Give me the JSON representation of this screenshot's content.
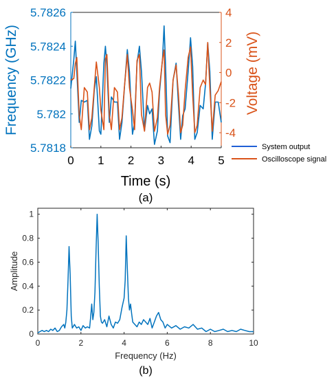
{
  "colors": {
    "system_output": "#0072BD",
    "oscilloscope": "#D95319",
    "legend_system": "#1f5fd6",
    "axis_gray": "#262626"
  },
  "chart_data": [
    {
      "type": "line",
      "caption": "(a)",
      "xlabel": "Time (s)",
      "ylabel_left": "Frequency (GHz)",
      "ylabel_right": "Voltage (mV)",
      "xlim": [
        0,
        5
      ],
      "ylim_left": [
        5.7818,
        5.7826
      ],
      "ylim_right": [
        -5,
        4
      ],
      "x_ticks": [
        0,
        1,
        2,
        3,
        4,
        5
      ],
      "y_left_ticks": [
        5.7818,
        5.782,
        5.7822,
        5.7824,
        5.7826
      ],
      "y_right_ticks": [
        -4,
        -2,
        0,
        2,
        4
      ],
      "y_left_tick_labels": [
        "5.7818",
        "5.782",
        "5.7822",
        "5.7824",
        "5.7826"
      ],
      "legend": [
        "System output",
        "Oscilloscope signal"
      ],
      "legend_position": "outside-right",
      "grid": false,
      "series": [
        {
          "name": "System output",
          "axis": "left",
          "x": [
            0.0,
            0.1,
            0.15,
            0.2,
            0.28,
            0.35,
            0.45,
            0.55,
            0.62,
            0.7,
            0.78,
            0.85,
            0.95,
            1.0,
            1.1,
            1.15,
            1.2,
            1.28,
            1.35,
            1.45,
            1.55,
            1.62,
            1.7,
            1.78,
            1.88,
            1.95,
            2.05,
            2.12,
            2.2,
            2.28,
            2.35,
            2.45,
            2.55,
            2.62,
            2.7,
            2.78,
            2.88,
            2.95,
            3.05,
            3.1,
            3.15,
            3.22,
            3.3,
            3.4,
            3.5,
            3.58,
            3.65,
            3.72,
            3.8,
            3.9,
            3.98,
            4.05,
            4.12,
            4.2,
            4.3,
            4.4,
            4.48,
            4.55,
            4.62,
            4.7,
            4.8,
            4.9,
            5.0
          ],
          "y": [
            5.78215,
            5.78232,
            5.78243,
            5.78225,
            5.78195,
            5.78208,
            5.78207,
            5.78208,
            5.78185,
            5.78193,
            5.78214,
            5.78222,
            5.7819,
            5.78188,
            5.7823,
            5.7824,
            5.78228,
            5.78195,
            5.7821,
            5.78207,
            5.78207,
            5.78185,
            5.78195,
            5.78215,
            5.78238,
            5.78225,
            5.78188,
            5.78195,
            5.7823,
            5.7824,
            5.78225,
            5.7819,
            5.78205,
            5.782,
            5.78203,
            5.78182,
            5.7819,
            5.78213,
            5.78233,
            5.78252,
            5.78228,
            5.78187,
            5.78183,
            5.7822,
            5.7823,
            5.78205,
            5.78185,
            5.78199,
            5.78203,
            5.78225,
            5.78245,
            5.78228,
            5.78185,
            5.78189,
            5.78205,
            5.78203,
            5.78218,
            5.78242,
            5.78225,
            5.78185,
            5.78207,
            5.78207,
            5.78195
          ]
        },
        {
          "name": "Oscilloscope signal",
          "axis": "right",
          "x": [
            0.0,
            0.1,
            0.15,
            0.2,
            0.28,
            0.35,
            0.45,
            0.55,
            0.62,
            0.7,
            0.78,
            0.85,
            0.95,
            1.0,
            1.1,
            1.15,
            1.2,
            1.28,
            1.35,
            1.45,
            1.55,
            1.62,
            1.7,
            1.78,
            1.88,
            1.95,
            2.05,
            2.12,
            2.2,
            2.28,
            2.35,
            2.45,
            2.55,
            2.62,
            2.7,
            2.78,
            2.88,
            2.95,
            3.05,
            3.1,
            3.15,
            3.22,
            3.3,
            3.4,
            3.5,
            3.58,
            3.65,
            3.72,
            3.8,
            3.9,
            3.98,
            4.05,
            4.12,
            4.2,
            4.3,
            4.4,
            4.48,
            4.55,
            4.62,
            4.7,
            4.8,
            4.9,
            5.0
          ],
          "y": [
            -0.5,
            -0.4,
            0.6,
            1.0,
            -2.8,
            -3.8,
            -1.0,
            -1.3,
            -3.8,
            -3.0,
            -1.0,
            0.7,
            -1.0,
            -2.5,
            -3.8,
            0.9,
            1.2,
            -2.8,
            -3.8,
            -1.0,
            -1.3,
            -3.8,
            -3.0,
            -1.0,
            1.2,
            -1.0,
            -2.5,
            -3.8,
            0.8,
            1.2,
            -2.8,
            -3.9,
            -1.0,
            -0.7,
            -1.3,
            -3.9,
            -3.0,
            -1.0,
            0.9,
            1.5,
            -2.8,
            -4.1,
            -3.5,
            -0.5,
            0.5,
            -1.5,
            -4.0,
            -3.5,
            -1.2,
            1.0,
            1.7,
            -1.5,
            -4.0,
            -3.5,
            -1.0,
            -0.5,
            -0.8,
            2.0,
            -1.0,
            -3.9,
            -1.5,
            -1.2,
            -0.6
          ]
        }
      ]
    },
    {
      "type": "line",
      "caption": "(b)",
      "xlabel": "Frequency (Hz)",
      "ylabel": "Amplitude",
      "xlim": [
        0,
        10
      ],
      "ylim": [
        0,
        1.05
      ],
      "x_ticks": [
        0,
        2,
        4,
        6,
        8,
        10
      ],
      "y_ticks": [
        0,
        0.2,
        0.4,
        0.6,
        0.8,
        1
      ],
      "grid": false,
      "series": [
        {
          "name": "",
          "x": [
            0.0,
            0.1,
            0.2,
            0.3,
            0.4,
            0.5,
            0.6,
            0.7,
            0.8,
            0.9,
            1.0,
            1.1,
            1.2,
            1.25,
            1.3,
            1.35,
            1.4,
            1.45,
            1.5,
            1.55,
            1.6,
            1.7,
            1.8,
            1.9,
            2.0,
            2.1,
            2.2,
            2.3,
            2.4,
            2.45,
            2.5,
            2.55,
            2.6,
            2.65,
            2.7,
            2.75,
            2.8,
            2.85,
            2.9,
            2.95,
            3.0,
            3.1,
            3.2,
            3.3,
            3.4,
            3.5,
            3.6,
            3.7,
            3.8,
            3.9,
            4.0,
            4.05,
            4.1,
            4.15,
            4.2,
            4.25,
            4.3,
            4.35,
            4.4,
            4.5,
            4.6,
            4.7,
            4.8,
            4.9,
            5.0,
            5.1,
            5.2,
            5.3,
            5.4,
            5.5,
            5.6,
            5.7,
            5.8,
            5.9,
            6.0,
            6.2,
            6.4,
            6.6,
            6.8,
            7.0,
            7.2,
            7.4,
            7.6,
            7.8,
            8.0,
            8.2,
            8.4,
            8.6,
            8.8,
            9.0,
            9.2,
            9.4,
            9.6,
            9.8,
            10.0
          ],
          "y": [
            0.01,
            0.02,
            0.03,
            0.02,
            0.03,
            0.02,
            0.04,
            0.03,
            0.05,
            0.02,
            0.03,
            0.06,
            0.08,
            0.05,
            0.1,
            0.2,
            0.45,
            0.73,
            0.5,
            0.15,
            0.05,
            0.08,
            0.05,
            0.06,
            0.03,
            0.07,
            0.05,
            0.06,
            0.05,
            0.14,
            0.25,
            0.12,
            0.18,
            0.35,
            0.7,
            1.0,
            0.75,
            0.4,
            0.15,
            0.1,
            0.09,
            0.12,
            0.06,
            0.15,
            0.08,
            0.05,
            0.1,
            0.09,
            0.12,
            0.22,
            0.3,
            0.45,
            0.82,
            0.55,
            0.3,
            0.2,
            0.25,
            0.17,
            0.1,
            0.08,
            0.06,
            0.1,
            0.08,
            0.12,
            0.1,
            0.08,
            0.13,
            0.05,
            0.1,
            0.15,
            0.18,
            0.12,
            0.1,
            0.05,
            0.08,
            0.05,
            0.07,
            0.04,
            0.06,
            0.05,
            0.08,
            0.04,
            0.05,
            0.02,
            0.04,
            0.02,
            0.03,
            0.04,
            0.02,
            0.03,
            0.02,
            0.04,
            0.03,
            0.02,
            0.02
          ]
        }
      ]
    }
  ]
}
